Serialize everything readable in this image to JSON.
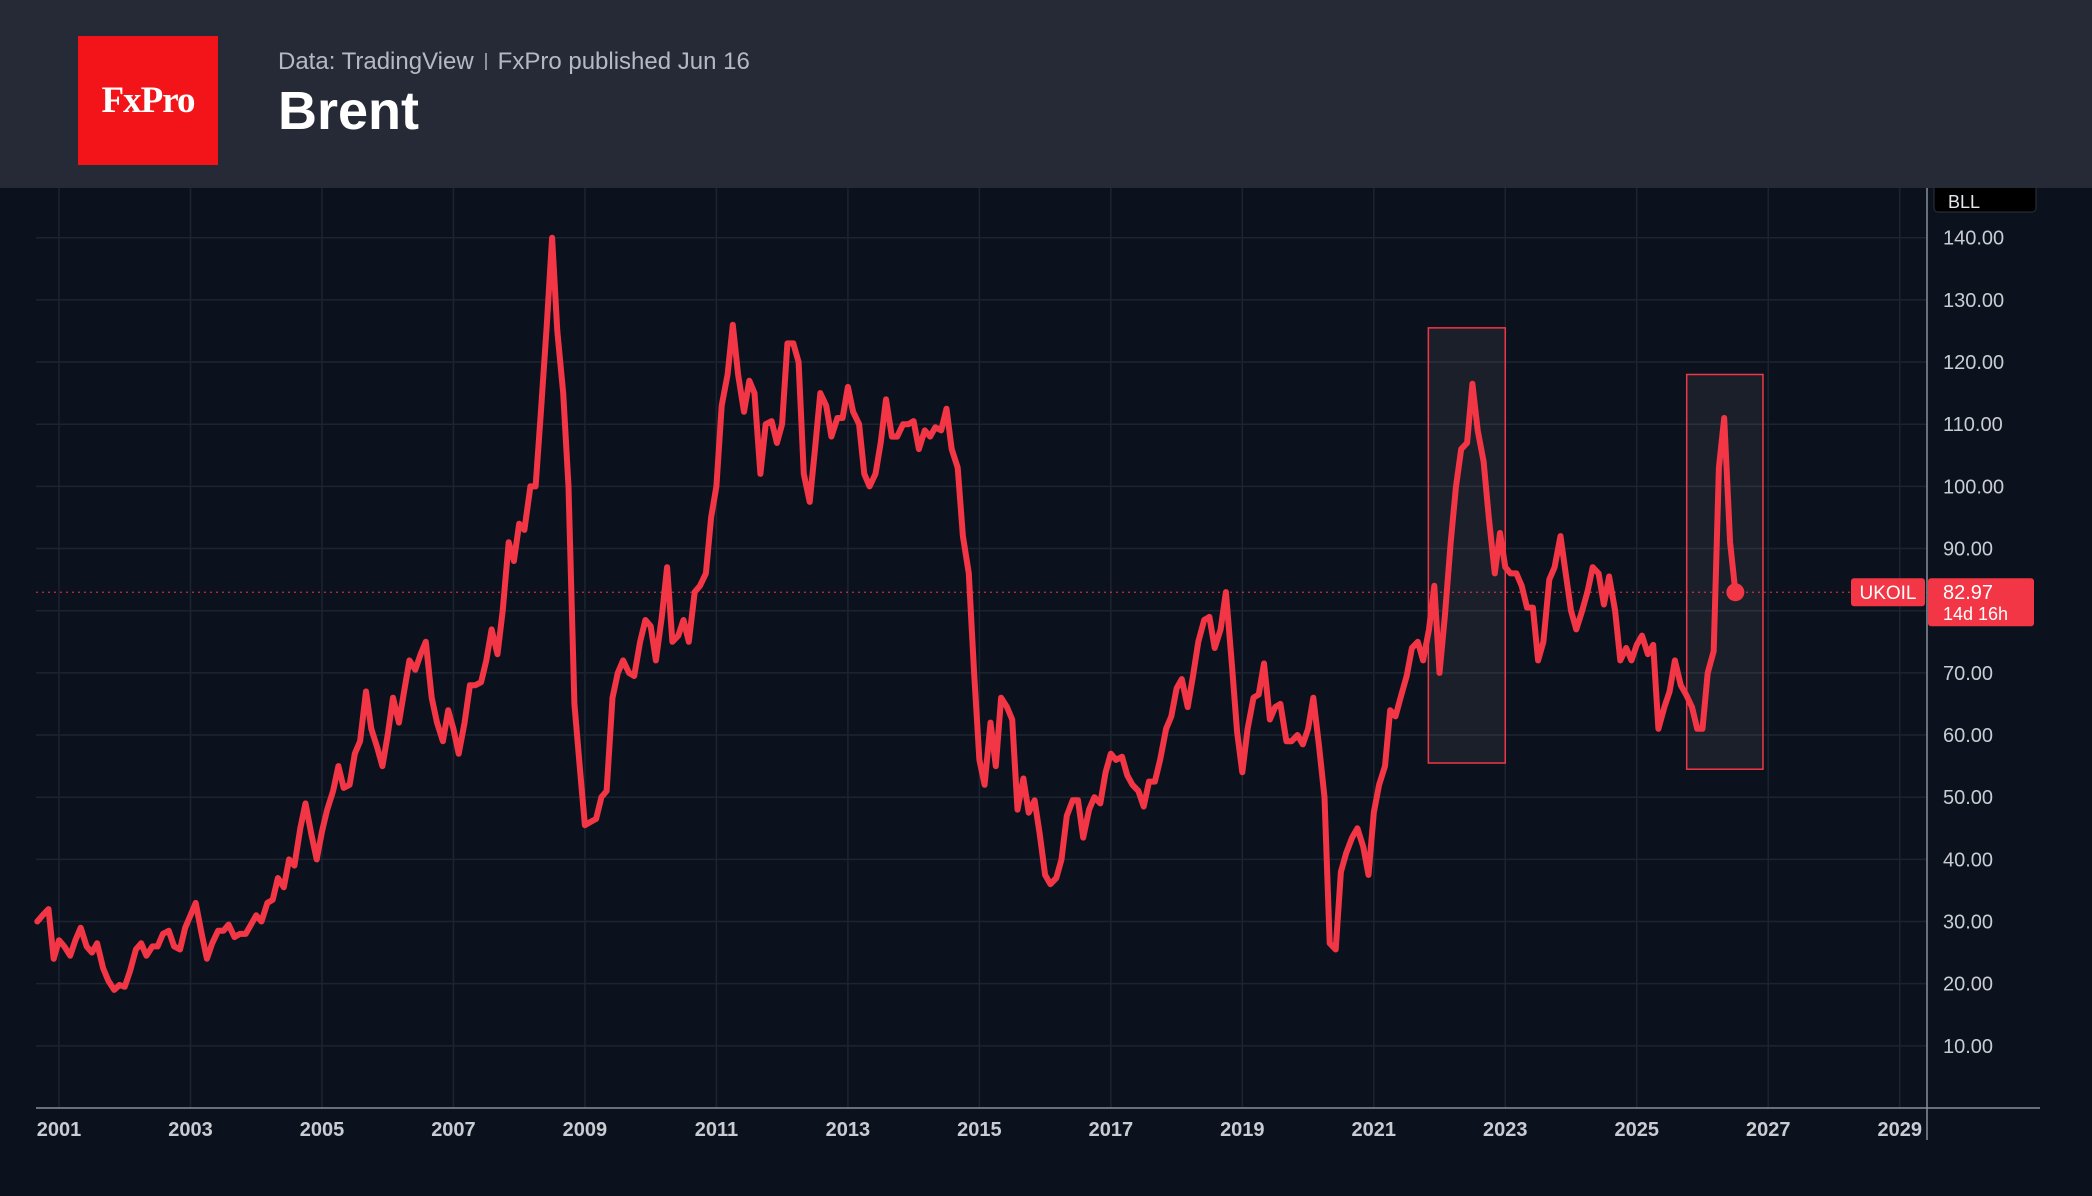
{
  "header": {
    "logo_text": "FxPro",
    "source": "Data: TradingView",
    "published": "FxPro published Jun 16",
    "title": "Brent"
  },
  "colors": {
    "header_bg": "#262a36",
    "chart_bg": "#0c121d",
    "line": "#f23645",
    "logo_bg": "#f3141a",
    "grid": "#1d2431"
  },
  "chart_data": {
    "type": "line",
    "title": "Brent",
    "symbol": "UKOIL",
    "unit_label": "BLL",
    "last_value": "82.97",
    "countdown": "14d 16h",
    "x_range": [
      2000.65,
      2029.4
    ],
    "y_range": [
      0,
      148
    ],
    "x_ticks": [
      "2001",
      "2003",
      "2005",
      "2007",
      "2009",
      "2011",
      "2013",
      "2015",
      "2017",
      "2019",
      "2021",
      "2023",
      "2025",
      "2027",
      "2029"
    ],
    "y_ticks": [
      "10.00",
      "20.00",
      "30.00",
      "40.00",
      "50.00",
      "60.00",
      "70.00",
      "80.00",
      "90.00",
      "100.00",
      "110.00",
      "120.00",
      "130.00",
      "140.00"
    ],
    "highlight_boxes": [
      {
        "x_start": 2021.83,
        "x_end": 2023.0,
        "y_low": 55.5,
        "y_high": 125.5
      },
      {
        "x_start": 2025.76,
        "x_end": 2026.92,
        "y_low": 54.5,
        "y_high": 118.0
      }
    ],
    "series": [
      {
        "x": [
          2000.67,
          2000.75,
          2000.84,
          2000.92,
          2001.0,
          2001.08,
          2001.17,
          2001.25,
          2001.33,
          2001.42,
          2001.5,
          2001.58,
          2001.67,
          2001.75,
          2001.84,
          2001.92,
          2002.0,
          2002.08,
          2002.17,
          2002.25,
          2002.33,
          2002.42,
          2002.5,
          2002.58,
          2002.67,
          2002.75,
          2002.84,
          2002.92,
          2003.0,
          2003.08,
          2003.17,
          2003.25,
          2003.33,
          2003.42,
          2003.5,
          2003.58,
          2003.67,
          2003.75,
          2003.84,
          2003.92,
          2004.0,
          2004.08,
          2004.17,
          2004.25,
          2004.33,
          2004.42,
          2004.5,
          2004.58,
          2004.67,
          2004.75,
          2004.84,
          2004.92,
          2005.0,
          2005.08,
          2005.17,
          2005.25,
          2005.33,
          2005.42,
          2005.5,
          2005.58,
          2005.67,
          2005.75,
          2005.84,
          2005.92,
          2006.0,
          2006.08,
          2006.17,
          2006.25,
          2006.33,
          2006.42,
          2006.5,
          2006.58,
          2006.67,
          2006.75,
          2006.84,
          2006.92,
          2007.0,
          2007.08,
          2007.17,
          2007.25,
          2007.33,
          2007.42,
          2007.5,
          2007.58,
          2007.67,
          2007.75,
          2007.84,
          2007.92,
          2008.0,
          2008.08,
          2008.17,
          2008.25,
          2008.33,
          2008.42,
          2008.5,
          2008.58,
          2008.67,
          2008.75,
          2008.84,
          2008.92,
          2009.0,
          2009.08,
          2009.17,
          2009.25,
          2009.33,
          2009.42,
          2009.5,
          2009.58,
          2009.67,
          2009.75,
          2009.84,
          2009.92,
          2010.0,
          2010.08,
          2010.17,
          2010.25,
          2010.33,
          2010.42,
          2010.5,
          2010.58,
          2010.67,
          2010.75,
          2010.84,
          2010.92,
          2011.0,
          2011.08,
          2011.17,
          2011.25,
          2011.33,
          2011.42,
          2011.5,
          2011.58,
          2011.67,
          2011.75,
          2011.84,
          2011.92,
          2012.0,
          2012.08,
          2012.17,
          2012.25,
          2012.33,
          2012.42,
          2012.5,
          2012.58,
          2012.67,
          2012.75,
          2012.84,
          2012.92,
          2013.0,
          2013.08,
          2013.17,
          2013.25,
          2013.33,
          2013.42,
          2013.5,
          2013.58,
          2013.67,
          2013.75,
          2013.84,
          2013.92,
          2014.0,
          2014.08,
          2014.17,
          2014.25,
          2014.33,
          2014.42,
          2014.5,
          2014.58,
          2014.67,
          2014.75,
          2014.84,
          2014.92,
          2015.0,
          2015.08,
          2015.17,
          2015.25,
          2015.33,
          2015.42,
          2015.5,
          2015.58,
          2015.67,
          2015.75,
          2015.84,
          2015.92,
          2016.0,
          2016.08,
          2016.17,
          2016.25,
          2016.33,
          2016.42,
          2016.5,
          2016.58,
          2016.67,
          2016.75,
          2016.84,
          2016.92,
          2017.0,
          2017.08,
          2017.17,
          2017.25,
          2017.33,
          2017.42,
          2017.5,
          2017.58,
          2017.67,
          2017.75,
          2017.84,
          2017.92,
          2018.0,
          2018.08,
          2018.17,
          2018.25,
          2018.33,
          2018.42,
          2018.5,
          2018.58,
          2018.67,
          2018.75,
          2018.84,
          2018.92,
          2019.0,
          2019.08,
          2019.17,
          2019.25,
          2019.33,
          2019.42,
          2019.5,
          2019.58,
          2019.67,
          2019.75,
          2019.84,
          2019.92,
          2020.0,
          2020.08,
          2020.17,
          2020.25,
          2020.33,
          2020.42,
          2020.5,
          2020.58,
          2020.67,
          2020.75,
          2020.84,
          2020.92,
          2021.0,
          2021.08,
          2021.17,
          2021.25,
          2021.33,
          2021.42,
          2021.5,
          2021.58,
          2021.67,
          2021.75,
          2021.84,
          2021.92,
          2022.0,
          2022.08,
          2022.17,
          2022.25,
          2022.33,
          2022.42,
          2022.5,
          2022.58,
          2022.67,
          2022.75,
          2022.84,
          2022.92,
          2023.0,
          2023.08,
          2023.17,
          2023.25,
          2023.33,
          2023.42,
          2023.5,
          2023.58,
          2023.67,
          2023.75,
          2023.84,
          2023.92,
          2024.0,
          2024.08,
          2024.17,
          2024.25,
          2024.33,
          2024.42,
          2024.5,
          2024.58,
          2024.67,
          2024.75,
          2024.84,
          2024.92,
          2025.0,
          2025.08,
          2025.17,
          2025.25,
          2025.33,
          2025.42,
          2025.5,
          2025.58,
          2025.67,
          2025.75,
          2025.84,
          2025.92,
          2026.0,
          2026.08,
          2026.17,
          2026.25,
          2026.33,
          2026.42,
          2026.5
        ],
        "values": [
          30.0,
          31.0,
          32.0,
          24.0,
          27.0,
          26.0,
          24.5,
          27.0,
          29.0,
          26.0,
          25.0,
          26.5,
          22.5,
          20.5,
          19.0,
          19.8,
          19.5,
          22.0,
          25.5,
          26.5,
          24.5,
          26.0,
          26.0,
          28.0,
          28.5,
          26.0,
          25.5,
          29.0,
          31.0,
          33.0,
          28.0,
          24.0,
          26.5,
          28.5,
          28.5,
          29.5,
          27.5,
          28.0,
          28.0,
          29.5,
          31.0,
          30.0,
          33.0,
          33.5,
          37.0,
          35.5,
          40.0,
          39.0,
          45.0,
          49.0,
          44.0,
          40.0,
          44.5,
          48.0,
          51.0,
          55.0,
          51.5,
          52.0,
          57.0,
          59.0,
          67.0,
          61.0,
          58.0,
          55.0,
          60.0,
          66.0,
          62.0,
          67.0,
          72.0,
          70.5,
          73.0,
          75.0,
          66.0,
          62.0,
          59.0,
          64.0,
          61.0,
          57.0,
          62.0,
          68.0,
          68.0,
          68.5,
          72.0,
          77.0,
          73.0,
          80.0,
          91.0,
          88.0,
          94.0,
          93.0,
          100.0,
          100.0,
          112.0,
          126.0,
          140.0,
          125.0,
          115.0,
          100.0,
          65.0,
          55.0,
          45.5,
          46.0,
          46.5,
          50.0,
          51.0,
          66.0,
          70.0,
          72.0,
          70.0,
          69.5,
          75.0,
          78.5,
          77.5,
          72.0,
          79.0,
          87.0,
          75.0,
          76.0,
          78.5,
          75.0,
          83.0,
          84.0,
          86.0,
          95.0,
          100.0,
          113.0,
          118.0,
          126.0,
          118.0,
          112.0,
          117.0,
          115.0,
          102.0,
          110.0,
          110.5,
          107.0,
          110.0,
          123.0,
          123.0,
          120.0,
          102.0,
          97.5,
          106.0,
          115.0,
          113.0,
          108.0,
          111.0,
          111.0,
          116.0,
          112.0,
          110.0,
          102.0,
          100.0,
          102.0,
          107.0,
          114.0,
          108.0,
          108.0,
          110.0,
          110.0,
          110.5,
          106.0,
          109.0,
          108.0,
          109.5,
          109.0,
          112.5,
          106.0,
          103.0,
          92.0,
          86.0,
          70.0,
          56.0,
          52.0,
          62.0,
          55.0,
          66.0,
          64.5,
          62.5,
          48.0,
          53.0,
          47.5,
          49.5,
          44.0,
          37.5,
          36.0,
          37.0,
          40.0,
          47.0,
          49.5,
          49.5,
          43.5,
          48.0,
          50.0,
          49.0,
          54.0,
          57.0,
          56.0,
          56.5,
          53.5,
          52.0,
          51.0,
          48.5,
          52.5,
          52.5,
          56.0,
          61.0,
          63.0,
          67.5,
          69.0,
          64.5,
          69.5,
          75.0,
          78.5,
          79.0,
          74.0,
          77.0,
          83.0,
          71.5,
          60.5,
          54.0,
          61.0,
          66.0,
          66.5,
          71.5,
          62.5,
          64.5,
          65.0,
          59.0,
          59.0,
          60.0,
          58.5,
          61.0,
          66.0,
          58.0,
          50.0,
          26.5,
          25.5,
          38.0,
          41.0,
          43.5,
          45.0,
          42.0,
          37.5,
          47.5,
          52.0,
          55.0,
          64.0,
          63.0,
          66.5,
          69.5,
          74.0,
          75.0,
          72.0,
          77.0,
          84.0,
          70.0,
          79.0,
          91.0,
          100.0,
          106.0,
          107.0,
          116.5,
          109.0,
          104.0,
          95.0,
          86.0,
          92.5,
          87.0,
          86.0,
          86.0,
          84.0,
          80.5,
          80.5,
          72.0,
          75.0,
          85.0,
          87.0,
          92.0,
          86.0,
          80.0,
          77.0,
          80.0,
          83.0,
          87.0,
          86.0,
          81.0,
          85.5,
          80.0,
          72.0,
          74.0,
          72.0,
          74.5,
          76.0,
          73.0,
          74.5,
          61.0,
          64.5,
          67.0,
          72.0,
          68.0,
          66.5,
          64.5,
          61.0,
          61.0,
          70.0,
          73.5,
          103.0,
          111.0,
          91.0,
          83.0
        ]
      }
    ]
  }
}
